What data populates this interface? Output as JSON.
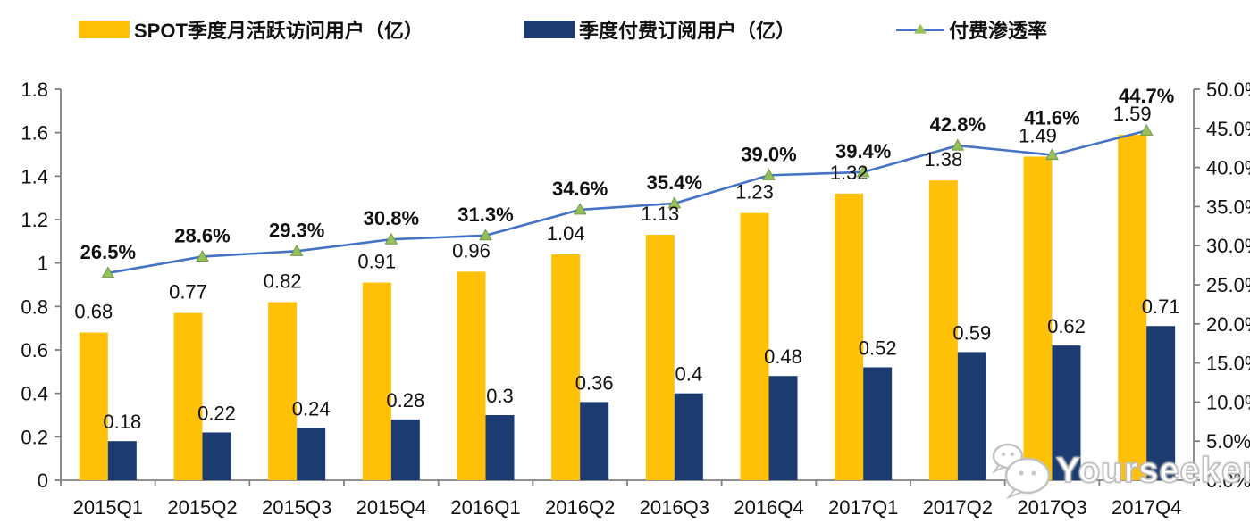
{
  "watermark": {
    "text": "Yourseeker",
    "icon": "wechat-chat-bubbles-icon"
  },
  "colors": {
    "mau_bar": "#FFC008",
    "sub_bar": "#1C3B70",
    "line": "#4472C4",
    "marker_fill": "#97BF5A",
    "marker_stroke": "#6E9B44",
    "axis": "#808080",
    "text": "#111111"
  },
  "chart_data": {
    "type": "bar",
    "subtype": "grouped-bars-with-line-combo",
    "grid": false,
    "legend_position": "top",
    "categories": [
      "2015Q1",
      "2015Q2",
      "2015Q3",
      "2015Q4",
      "2016Q1",
      "2016Q2",
      "2016Q3",
      "2016Q4",
      "2017Q1",
      "2017Q2",
      "2017Q3",
      "2017Q4"
    ],
    "series": [
      {
        "name": "SPOT季度月活跃访问用户（亿）",
        "type": "bar",
        "axis": "left",
        "color": "#FFC008",
        "values": [
          0.68,
          0.77,
          0.82,
          0.91,
          0.96,
          1.04,
          1.13,
          1.23,
          1.32,
          1.38,
          1.49,
          1.59
        ],
        "labels": [
          "0.68",
          "0.77",
          "0.82",
          "0.91",
          "0.96",
          "1.04",
          "1.13",
          "1.23",
          "1.32",
          "1.38",
          "1.49",
          "1.59"
        ]
      },
      {
        "name": "季度付费订阅用户（亿）",
        "type": "bar",
        "axis": "left",
        "color": "#1C3B70",
        "values": [
          0.18,
          0.22,
          0.24,
          0.28,
          0.3,
          0.36,
          0.4,
          0.48,
          0.52,
          0.59,
          0.62,
          0.71
        ],
        "labels": [
          "0.18",
          "0.22",
          "0.24",
          "0.28",
          "0.3",
          "0.36",
          "0.4",
          "0.48",
          "0.52",
          "0.59",
          "0.62",
          "0.71"
        ]
      },
      {
        "name": "付费渗透率",
        "type": "line",
        "axis": "right",
        "color": "#4472C4",
        "marker": "triangle",
        "values": [
          26.5,
          28.6,
          29.3,
          30.8,
          31.3,
          34.6,
          35.4,
          39.0,
          39.4,
          42.8,
          41.6,
          44.7
        ],
        "labels": [
          "26.5%",
          "28.6%",
          "29.3%",
          "30.8%",
          "31.3%",
          "34.6%",
          "35.4%",
          "39.0%",
          "39.4%",
          "42.8%",
          "41.6%",
          "44.7%"
        ]
      }
    ],
    "left_axis": {
      "min": 0,
      "max": 1.8,
      "ticks": [
        "0",
        "0.2",
        "0.4",
        "0.6",
        "0.8",
        "1",
        "1.2",
        "1.4",
        "1.6",
        "1.8"
      ]
    },
    "right_axis": {
      "min": 0,
      "max": 50,
      "ticks": [
        "0.0%",
        "5.0%",
        "10.0%",
        "15.0%",
        "20.0%",
        "25.0%",
        "30.0%",
        "35.0%",
        "40.0%",
        "45.0%",
        "50.0%"
      ]
    }
  }
}
